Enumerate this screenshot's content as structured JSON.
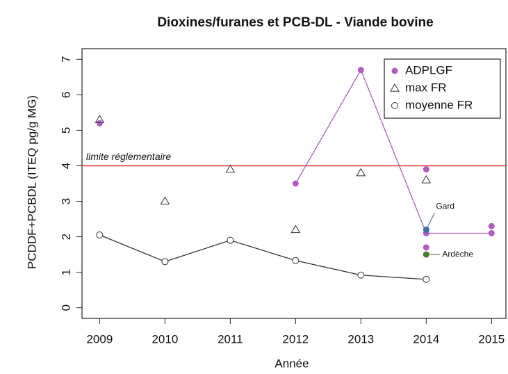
{
  "chart_data": {
    "type": "scatter",
    "title": "Dioxines/furanes et PCB-DL - Viande bovine",
    "xlabel": "Année",
    "ylabel": "PCDDF+PCBDL (ITEQ pg/g MG)",
    "xlim": [
      2008.73,
      2015.22
    ],
    "ylim": [
      -0.3,
      7.3
    ],
    "xticks": [
      2009,
      2010,
      2011,
      2012,
      2013,
      2014,
      2015
    ],
    "yticks": [
      0,
      1,
      2,
      3,
      4,
      5,
      6,
      7
    ],
    "legend": "top-right",
    "series": [
      {
        "name": "ADPLGF",
        "color": "#b05cc0",
        "marker": "filled-circle",
        "x": [
          2009,
          2012,
          2013,
          2014,
          2014,
          2014,
          2015,
          2015
        ],
        "values": [
          5.2,
          3.5,
          6.7,
          3.9,
          2.1,
          1.7,
          2.3,
          2.1
        ],
        "connect": [
          1,
          2,
          4,
          7
        ]
      },
      {
        "name": "max FR",
        "color": "#333333",
        "marker": "triangle",
        "x": [
          2009,
          2010,
          2011,
          2012,
          2013,
          2014
        ],
        "values": [
          5.3,
          3.0,
          3.9,
          2.2,
          3.8,
          3.6
        ]
      },
      {
        "name": "moyenne FR",
        "color": "#333333",
        "marker": "circle",
        "line": true,
        "x": [
          2009,
          2010,
          2011,
          2012,
          2013,
          2014
        ],
        "values": [
          2.05,
          1.3,
          1.9,
          1.33,
          0.92,
          0.8
        ]
      }
    ],
    "hline": {
      "value": 4,
      "label": "limite réglementaire",
      "color": "#e83030"
    },
    "annotations": [
      {
        "label": "Gard",
        "x": 2014,
        "y": 2.2,
        "color": "#3c6fa8",
        "side": "up"
      },
      {
        "label": "Ardèche",
        "x": 2014,
        "y": 1.5,
        "color": "#4e7a2e",
        "side": "right"
      }
    ]
  }
}
